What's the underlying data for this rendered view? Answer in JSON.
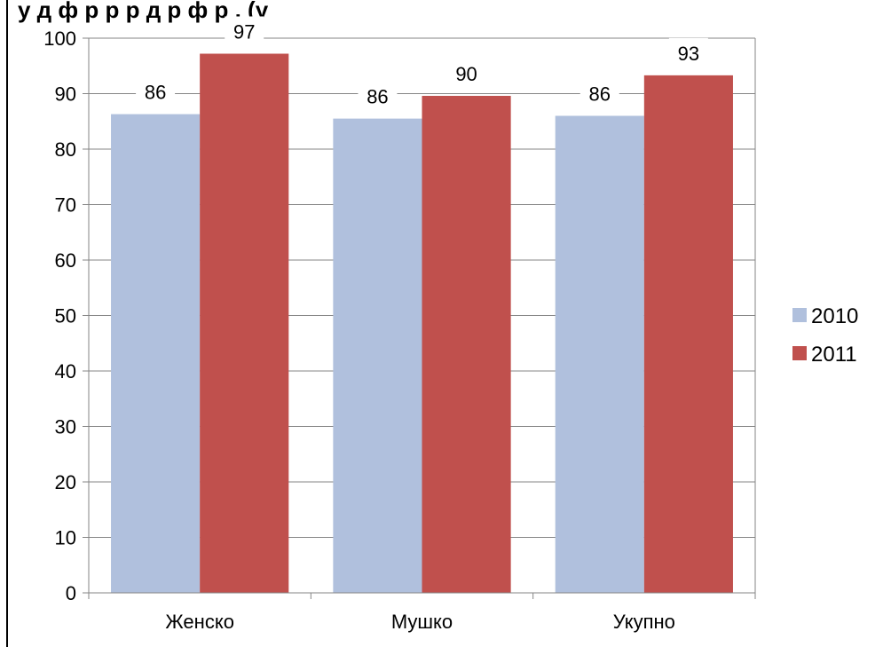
{
  "title_fragment": "у         д   ф  р       р             р   д                    р  ф  р     ,            (у",
  "chart_data": {
    "type": "bar",
    "categories": [
      "Женско",
      "Мушко",
      "Укупно"
    ],
    "series": [
      {
        "name": "2010",
        "values": [
          86.3,
          85.5,
          86.0
        ],
        "labels": [
          "86",
          "86",
          "86"
        ],
        "color": "#b0c0dd"
      },
      {
        "name": "2011",
        "values": [
          97.2,
          89.6,
          93.3
        ],
        "labels": [
          "97",
          "90",
          "93"
        ],
        "color": "#c0504d"
      }
    ],
    "ylim": [
      0,
      100
    ],
    "yticks": [
      "0",
      "10",
      "20",
      "30",
      "40",
      "50",
      "60",
      "70",
      "80",
      "90",
      "100"
    ],
    "grid": true,
    "legend_position": "right"
  }
}
